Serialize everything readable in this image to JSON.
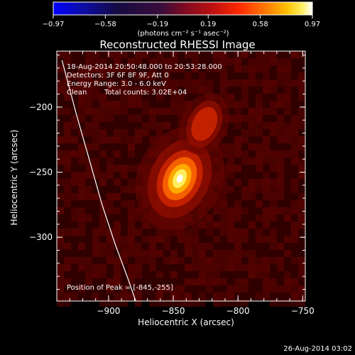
{
  "title": "Reconstructed RHESSI Image",
  "annotation": {
    "time_range": "18-Aug-2014 20:50:48.000 to 20:53:28.000",
    "detectors": "Detectors: 3F 6F 8F 9F, Att 0",
    "energy_range": "Energy Range: 3.0 - 6.0 keV",
    "method": "Clean",
    "total_counts": "Total counts: 3.02E+04",
    "peak_position": "Position of Peak = [-845,-255]"
  },
  "colorbar": {
    "min": -0.97,
    "max": 0.97,
    "tick_labels": [
      "-0.97",
      "-0.58",
      "-0.19",
      "0.19",
      "0.58",
      "0.97"
    ],
    "tick_values": [
      -0.97,
      -0.58,
      -0.19,
      0.19,
      0.58,
      0.97
    ],
    "unit_text": "(photons cm⁻² s⁻¹ asec⁻²)"
  },
  "footer_timestamp": "26-Aug-2014 03:02",
  "chart_data": {
    "type": "heatmap",
    "title": "Reconstructed RHESSI Image",
    "xlabel": "Heliocentric X (arcsec)",
    "ylabel": "Heliocentric Y (arcsec)",
    "xlim": [
      -940,
      -748
    ],
    "ylim": [
      -349,
      -157
    ],
    "x_ticks": [
      -900,
      -850,
      -800,
      -750
    ],
    "y_ticks": [
      -200,
      -250,
      -300
    ],
    "colormap": "hot",
    "sources": [
      {
        "x": -845,
        "y": -255,
        "peak": 0.97,
        "label": "Position of Peak"
      },
      {
        "x": -826,
        "y": -213,
        "peak": 0.45
      }
    ],
    "limb_curve": {
      "x": [
        -936,
        -925,
        -915,
        -905,
        -895,
        -885,
        -879
      ],
      "y": [
        -164,
        -205,
        -240,
        -275,
        -305,
        -332,
        -349
      ]
    }
  }
}
